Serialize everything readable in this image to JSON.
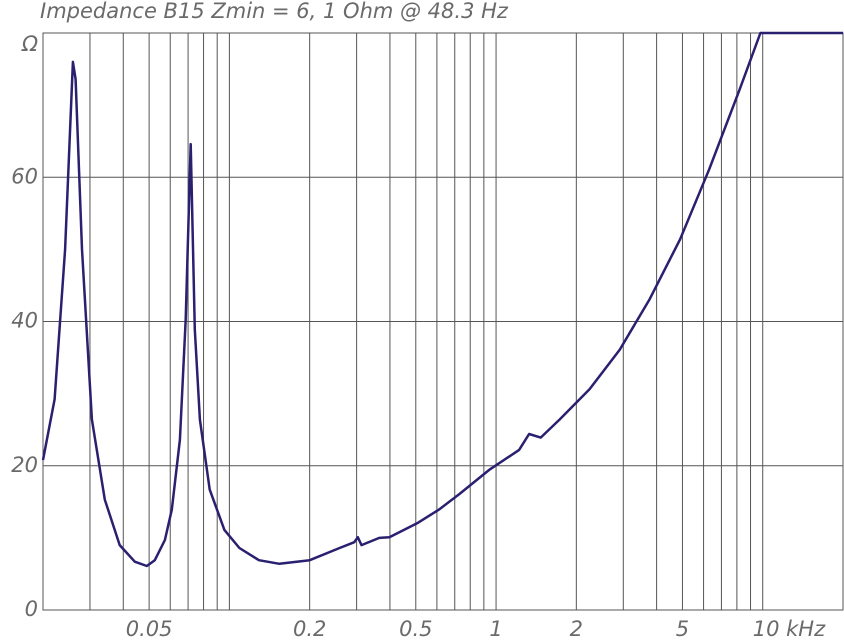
{
  "chart_data": {
    "type": "line",
    "title": "Impedance B15 Zmin = 6, 1 Ohm @ 48.3 Hz",
    "xscale": "log",
    "grid": true,
    "color": "#2a2070",
    "xlim": [
      0.02,
      20
    ],
    "xticks": [
      0.05,
      0.2,
      0.5,
      1,
      2,
      5,
      {
        "value": 10,
        "label": "10 kHz"
      }
    ],
    "xminorticks": [
      0.03,
      0.04,
      0.06,
      0.07,
      0.08,
      0.09,
      0.1,
      0.3,
      0.4,
      0.6,
      0.7,
      0.8,
      0.9,
      3,
      4,
      6,
      7,
      8,
      9
    ],
    "ylim": [
      0,
      80
    ],
    "yticks": [
      0,
      20,
      40,
      60,
      {
        "value": 80,
        "label": "Ω"
      }
    ],
    "x": [
      0.02,
      0.0221,
      0.0242,
      0.0259,
      0.0265,
      0.028,
      0.0305,
      0.0341,
      0.0388,
      0.0442,
      0.049,
      0.0525,
      0.0573,
      0.0608,
      0.0652,
      0.0686,
      0.0716,
      0.0742,
      0.0775,
      0.0844,
      0.0958,
      0.109,
      0.129,
      0.154,
      0.2,
      0.259,
      0.294,
      0.303,
      0.313,
      0.365,
      0.398,
      0.51,
      0.61,
      0.73,
      0.94,
      1.22,
      1.33,
      1.47,
      1.73,
      2.24,
      2.91,
      3.77,
      4.9,
      6.3,
      8.2,
      9.8,
      20
    ],
    "values": [
      20.8,
      29.2,
      50,
      76,
      73.6,
      50,
      26.4,
      15.3,
      9.0,
      6.7,
      6.1,
      6.9,
      9.7,
      13.9,
      23.6,
      40.3,
      64.6,
      38.9,
      26.4,
      16.7,
      11.1,
      8.6,
      6.9,
      6.4,
      6.9,
      8.6,
      9.4,
      10.1,
      9.0,
      10.0,
      10.1,
      12.1,
      13.9,
      16.1,
      19.4,
      22.2,
      24.4,
      23.9,
      26.4,
      30.6,
      36.1,
      43.1,
      51.4,
      61.1,
      72.2,
      80,
      80
    ]
  }
}
